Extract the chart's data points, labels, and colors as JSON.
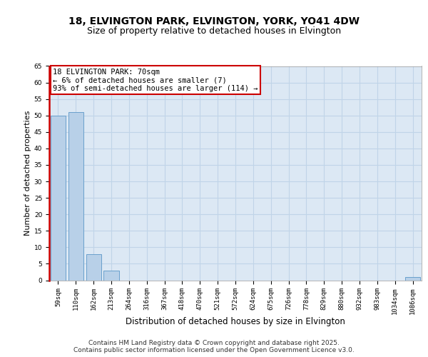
{
  "title_line1": "18, ELVINGTON PARK, ELVINGTON, YORK, YO41 4DW",
  "title_line2": "Size of property relative to detached houses in Elvington",
  "xlabel": "Distribution of detached houses by size in Elvington",
  "ylabel": "Number of detached properties",
  "categories": [
    "59sqm",
    "110sqm",
    "162sqm",
    "213sqm",
    "264sqm",
    "316sqm",
    "367sqm",
    "418sqm",
    "470sqm",
    "521sqm",
    "572sqm",
    "624sqm",
    "675sqm",
    "726sqm",
    "778sqm",
    "829sqm",
    "880sqm",
    "932sqm",
    "983sqm",
    "1034sqm",
    "1086sqm"
  ],
  "values": [
    50,
    51,
    8,
    3,
    0,
    0,
    0,
    0,
    0,
    0,
    0,
    0,
    0,
    0,
    0,
    0,
    0,
    0,
    0,
    0,
    1
  ],
  "bar_color": "#b8d0e8",
  "bar_edge_color": "#6aa0cc",
  "annotation_box_text": "18 ELVINGTON PARK: 70sqm\n← 6% of detached houses are smaller (7)\n93% of semi-detached houses are larger (114) →",
  "annotation_box_color": "#ffffff",
  "annotation_box_edge_color": "#cc0000",
  "property_line_color": "#cc0000",
  "property_line_x": -0.5,
  "ylim": [
    0,
    65
  ],
  "yticks": [
    0,
    5,
    10,
    15,
    20,
    25,
    30,
    35,
    40,
    45,
    50,
    55,
    60,
    65
  ],
  "grid_color": "#c0d4e8",
  "background_color": "#dce8f4",
  "footer_text": "Contains HM Land Registry data © Crown copyright and database right 2025.\nContains public sector information licensed under the Open Government Licence v3.0.",
  "title_fontsize": 10,
  "subtitle_fontsize": 9,
  "xlabel_fontsize": 8.5,
  "ylabel_fontsize": 8,
  "tick_fontsize": 6.5,
  "annotation_fontsize": 7.5,
  "footer_fontsize": 6.5
}
